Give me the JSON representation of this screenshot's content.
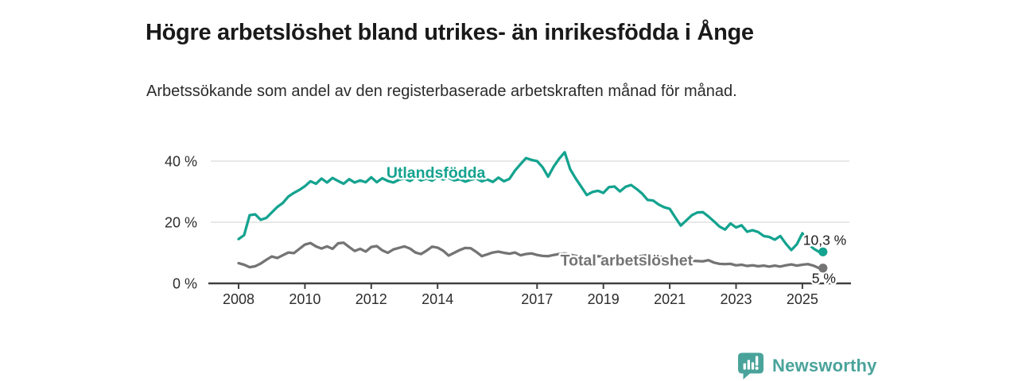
{
  "header": {
    "title": "Högre arbetslöshet bland utrikes- än inrikesfödda i Ånge",
    "subtitle": "Arbetssökande som andel av den registerbaserade arbetskraften månad för månad."
  },
  "footer": {
    "brand": "Newsworthy",
    "brand_color": "#4aa39b",
    "logo_icon": "newsworthy-bar-chart-speech-bubble-icon"
  },
  "chart_data": {
    "type": "line",
    "title": "Högre arbetslöshet bland utrikes- än inrikesfödda i Ånge",
    "unit": "%",
    "grid": "horizontal-light",
    "x_axis": {
      "ticks": [
        2008,
        2010,
        2012,
        2014,
        2017,
        2019,
        2021,
        2023,
        2025
      ],
      "tick_labels": [
        "2008",
        "2010",
        "2012",
        "2014",
        "2017",
        "2019",
        "2021",
        "2023",
        "2025"
      ],
      "range": [
        2007.3,
        2026.5
      ]
    },
    "y_axis": {
      "ticks": [
        0,
        20,
        40
      ],
      "tick_labels": [
        "0 %",
        "20 %",
        "40 %"
      ],
      "range": [
        0,
        46.5
      ]
    },
    "x_start": 2008.0,
    "x_step": 0.166667,
    "series": [
      {
        "name": "Utlandsfödda",
        "color": "#14a38f",
        "end_label": "10,3 %",
        "end_value": 10.3,
        "label_at": {
          "x": 2013.95,
          "y": 34.6
        },
        "values": [
          14.5,
          15.8,
          22.3,
          22.6,
          20.8,
          21.4,
          23.2,
          25.0,
          26.3,
          28.4,
          29.6,
          30.6,
          31.8,
          33.4,
          32.6,
          34.3,
          33.0,
          34.5,
          33.5,
          32.6,
          34.1,
          33.0,
          33.7,
          33.1,
          34.7,
          33.1,
          34.4,
          33.5,
          33.0,
          33.9,
          34.3,
          33.5,
          34.6,
          33.7,
          34.3,
          33.6,
          34.8,
          34.0,
          34.5,
          33.7,
          34.1,
          33.3,
          33.9,
          34.3,
          33.4,
          34.0,
          33.2,
          34.6,
          33.4,
          34.2,
          36.9,
          39.0,
          41.0,
          40.4,
          40.0,
          38.0,
          34.9,
          38.2,
          40.8,
          42.9,
          37.3,
          34.3,
          31.6,
          28.9,
          29.9,
          30.3,
          29.6,
          31.5,
          31.7,
          30.1,
          31.6,
          32.2,
          30.9,
          29.4,
          27.3,
          27.1,
          25.8,
          24.9,
          24.4,
          21.6,
          18.9,
          20.6,
          22.3,
          23.2,
          23.3,
          21.9,
          20.3,
          18.6,
          17.6,
          19.6,
          18.3,
          19.0,
          16.9,
          17.4,
          16.8,
          15.5,
          15.2,
          14.3,
          15.5,
          13.0,
          10.9,
          12.8,
          16.4,
          13.1,
          11.4,
          10.3
        ]
      },
      {
        "name": "Total arbetslöshet",
        "color": "#747474",
        "end_label": "5 %",
        "end_value": 5.0,
        "label_at": {
          "x": 2019.7,
          "y": 5.8
        },
        "values": [
          6.6,
          6.1,
          5.3,
          5.6,
          6.5,
          7.7,
          8.8,
          8.3,
          9.2,
          10.1,
          9.9,
          11.3,
          12.7,
          13.2,
          12.1,
          11.4,
          12.1,
          11.3,
          13.1,
          13.3,
          11.9,
          10.6,
          11.3,
          10.4,
          11.9,
          12.2,
          10.8,
          10.0,
          11.1,
          11.6,
          12.1,
          11.4,
          10.1,
          9.6,
          10.7,
          12.0,
          11.7,
          10.7,
          9.1,
          10.0,
          10.9,
          11.6,
          11.5,
          10.3,
          8.9,
          9.5,
          10.1,
          10.4,
          10.0,
          9.7,
          10.1,
          9.2,
          9.6,
          9.8,
          9.3,
          9.0,
          8.9,
          9.3,
          9.6,
          9.8,
          9.4,
          9.0,
          8.6,
          8.3,
          8.6,
          8.9,
          8.7,
          8.4,
          8.1,
          8.0,
          8.3,
          8.6,
          8.7,
          9.0,
          9.3,
          9.1,
          8.8,
          8.5,
          8.3,
          8.0,
          7.7,
          7.5,
          7.4,
          7.3,
          7.2,
          7.6,
          6.8,
          6.4,
          6.3,
          6.4,
          5.9,
          6.1,
          5.7,
          5.9,
          5.6,
          5.8,
          5.5,
          5.8,
          5.5,
          5.9,
          6.2,
          5.8,
          6.1,
          6.3,
          5.8,
          5.0
        ]
      }
    ]
  }
}
